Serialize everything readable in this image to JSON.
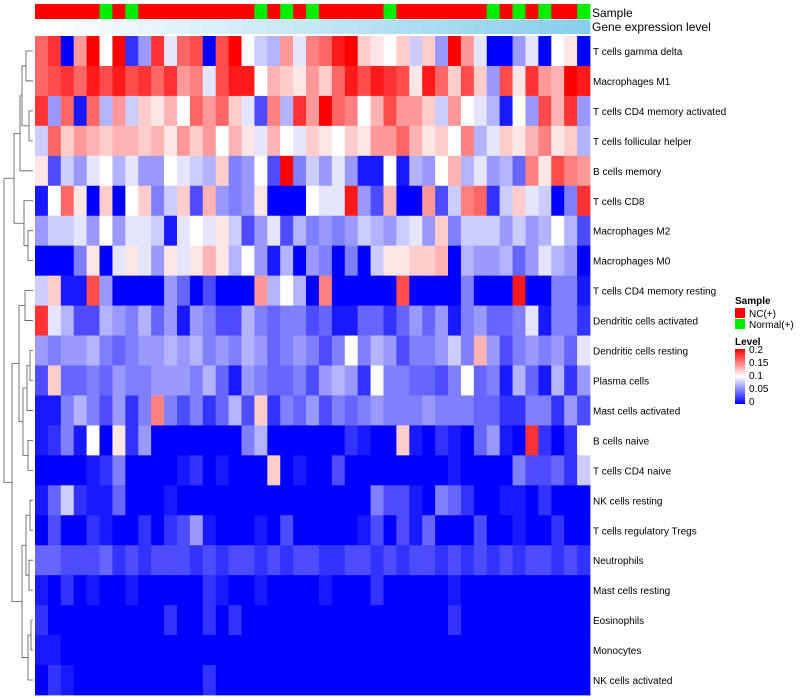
{
  "chart_data": {
    "type": "heatmap",
    "annotation_titles": {
      "sample": "Sample",
      "gene_expression": "Gene expression level"
    },
    "sample_groups": [
      "NC",
      "NC",
      "NC",
      "NC",
      "NC",
      "Normal",
      "NC",
      "Normal",
      "NC",
      "NC",
      "NC",
      "NC",
      "NC",
      "NC",
      "NC",
      "NC",
      "NC",
      "Normal",
      "NC",
      "Normal",
      "NC",
      "Normal",
      "NC",
      "NC",
      "NC",
      "NC",
      "NC",
      "Normal",
      "NC",
      "NC",
      "NC",
      "NC",
      "NC",
      "NC",
      "NC",
      "Normal",
      "NC",
      "Normal",
      "NC",
      "Normal",
      "NC",
      "NC",
      "Normal"
    ],
    "sample_group_colors": {
      "NC": "#ff0000",
      "Normal": "#00ee00"
    },
    "gene_expression_colors": {
      "start": "#ffffff",
      "end": "#87ceeb"
    },
    "rows": [
      "T cells gamma delta",
      "Macrophages M1",
      "T cells CD4 memory activated",
      "T cells follicular helper",
      "B cells memory",
      "T cells CD8",
      "Macrophages M2",
      "Macrophages M0",
      "T cells CD4 memory resting",
      "Dendritic cells activated",
      "Dendritic cells resting",
      "Plasma cells",
      "Mast cells activated",
      "B cells naive",
      "T cells CD4 naive",
      "NK cells resting",
      "T cells regulatory  Tregs",
      "Neutrophils",
      "Mast cells resting",
      "Eosinophils",
      "Monocytes",
      "NK cells activated"
    ],
    "values": [
      [
        0.16,
        0.18,
        0.0,
        0.14,
        0.2,
        0.1,
        0.2,
        0.02,
        0.06,
        0.18,
        0.09,
        0.16,
        0.17,
        0.0,
        0.17,
        0.2,
        0.1,
        0.08,
        0.07,
        0.14,
        0.09,
        0.15,
        0.16,
        0.19,
        0.2,
        0.12,
        0.11,
        0.1,
        0.12,
        0.08,
        0.12,
        0.06,
        0.2,
        0.14,
        0.09,
        0.0,
        0.0,
        0.06,
        0.09,
        0.0,
        0.1,
        0.11,
        0.0
      ],
      [
        0.16,
        0.17,
        0.18,
        0.16,
        0.19,
        0.17,
        0.19,
        0.17,
        0.18,
        0.16,
        0.18,
        0.14,
        0.15,
        0.09,
        0.17,
        0.19,
        0.19,
        0.1,
        0.13,
        0.12,
        0.11,
        0.14,
        0.12,
        0.16,
        0.19,
        0.17,
        0.19,
        0.18,
        0.17,
        0.11,
        0.19,
        0.16,
        0.12,
        0.17,
        0.12,
        0.06,
        0.17,
        0.11,
        0.18,
        0.14,
        0.13,
        0.2,
        0.19
      ],
      [
        0.18,
        0.06,
        0.16,
        0.01,
        0.16,
        0.07,
        0.14,
        0.08,
        0.12,
        0.11,
        0.13,
        0.1,
        0.16,
        0.14,
        0.16,
        0.12,
        0.09,
        0.03,
        0.15,
        0.07,
        0.18,
        0.14,
        0.2,
        0.16,
        0.15,
        0.1,
        0.13,
        0.17,
        0.14,
        0.14,
        0.12,
        0.08,
        0.14,
        0.1,
        0.09,
        0.07,
        0.01,
        0.1,
        0.06,
        0.17,
        0.13,
        0.18,
        0.06
      ],
      [
        0.08,
        0.16,
        0.12,
        0.14,
        0.13,
        0.12,
        0.13,
        0.13,
        0.12,
        0.13,
        0.11,
        0.14,
        0.12,
        0.14,
        0.1,
        0.13,
        0.11,
        0.09,
        0.13,
        0.1,
        0.09,
        0.12,
        0.11,
        0.1,
        0.12,
        0.11,
        0.14,
        0.14,
        0.16,
        0.13,
        0.11,
        0.12,
        0.1,
        0.15,
        0.07,
        0.09,
        0.12,
        0.11,
        0.13,
        0.15,
        0.11,
        0.12,
        0.07
      ],
      [
        0.11,
        0.03,
        0.08,
        0.06,
        0.09,
        0.1,
        0.07,
        0.09,
        0.06,
        0.06,
        0.1,
        0.09,
        0.08,
        0.07,
        0.12,
        0.05,
        0.06,
        0.1,
        0.03,
        0.2,
        0.05,
        0.08,
        0.06,
        0.09,
        0.06,
        0.01,
        0.01,
        0.1,
        0.01,
        0.07,
        0.06,
        0.1,
        0.13,
        0.07,
        0.09,
        0.06,
        0.07,
        0.04,
        0.15,
        0.11,
        0.17,
        0.15,
        0.14
      ],
      [
        0.01,
        0.1,
        0.16,
        0.11,
        0.0,
        0.12,
        0.0,
        0.1,
        0.12,
        0.05,
        0.08,
        0.12,
        0.03,
        0.13,
        0.06,
        0.05,
        0.06,
        0.11,
        0.0,
        0.0,
        0.0,
        0.1,
        0.09,
        0.09,
        0.19,
        0.06,
        0.03,
        0.13,
        0.0,
        0.0,
        0.14,
        0.03,
        0.08,
        0.15,
        0.16,
        0.02,
        0.08,
        0.12,
        0.09,
        0.08,
        0.0,
        0.05,
        0.18
      ],
      [
        0.06,
        0.08,
        0.08,
        0.09,
        0.06,
        0.1,
        0.06,
        0.09,
        0.09,
        0.08,
        0.01,
        0.09,
        0.1,
        0.09,
        0.11,
        0.08,
        0.03,
        0.06,
        0.09,
        0.03,
        0.07,
        0.05,
        0.06,
        0.05,
        0.06,
        0.08,
        0.07,
        0.06,
        0.08,
        0.09,
        0.06,
        0.12,
        0.05,
        0.08,
        0.08,
        0.08,
        0.06,
        0.08,
        0.06,
        0.07,
        0.1,
        0.07,
        0.03
      ],
      [
        0.0,
        0.0,
        0.0,
        0.05,
        0.11,
        0.0,
        0.09,
        0.11,
        0.09,
        0.06,
        0.11,
        0.09,
        0.11,
        0.13,
        0.11,
        0.07,
        0.1,
        0.06,
        0.01,
        0.07,
        0.0,
        0.06,
        0.05,
        0.0,
        0.05,
        0.0,
        0.08,
        0.11,
        0.11,
        0.12,
        0.12,
        0.13,
        0.0,
        0.07,
        0.06,
        0.06,
        0.07,
        0.04,
        0.06,
        0.09,
        0.07,
        0.06,
        0.0
      ],
      [
        0.08,
        0.12,
        0.01,
        0.01,
        0.17,
        0.06,
        0.0,
        0.0,
        0.0,
        0.0,
        0.06,
        0.04,
        0.0,
        0.03,
        0.0,
        0.0,
        0.0,
        0.14,
        0.07,
        0.1,
        0.07,
        0.0,
        0.15,
        0.0,
        0.0,
        0.0,
        0.0,
        0.0,
        0.17,
        0.0,
        0.0,
        0.0,
        0.0,
        0.05,
        0.0,
        0.0,
        0.0,
        0.19,
        0.0,
        0.0,
        0.05,
        0.05,
        0.01
      ],
      [
        0.18,
        0.09,
        0.07,
        0.03,
        0.03,
        0.07,
        0.06,
        0.05,
        0.07,
        0.04,
        0.06,
        0.01,
        0.06,
        0.05,
        0.03,
        0.03,
        0.07,
        0.05,
        0.04,
        0.05,
        0.05,
        0.03,
        0.04,
        0.01,
        0.01,
        0.04,
        0.04,
        0.02,
        0.04,
        0.06,
        0.04,
        0.06,
        0.01,
        0.05,
        0.06,
        0.04,
        0.04,
        0.05,
        0.09,
        0.01,
        0.05,
        0.05,
        0.02
      ],
      [
        0.06,
        0.05,
        0.06,
        0.06,
        0.07,
        0.05,
        0.04,
        0.05,
        0.06,
        0.06,
        0.07,
        0.06,
        0.07,
        0.05,
        0.06,
        0.05,
        0.07,
        0.06,
        0.04,
        0.05,
        0.06,
        0.05,
        0.03,
        0.05,
        0.1,
        0.05,
        0.07,
        0.06,
        0.03,
        0.05,
        0.05,
        0.06,
        0.08,
        0.05,
        0.13,
        0.06,
        0.03,
        0.05,
        0.06,
        0.05,
        0.06,
        0.04,
        0.09
      ],
      [
        0.03,
        0.12,
        0.04,
        0.04,
        0.05,
        0.04,
        0.06,
        0.05,
        0.05,
        0.06,
        0.06,
        0.06,
        0.05,
        0.07,
        0.04,
        0.01,
        0.06,
        0.05,
        0.04,
        0.04,
        0.05,
        0.03,
        0.06,
        0.07,
        0.06,
        0.02,
        0.1,
        0.05,
        0.05,
        0.04,
        0.04,
        0.03,
        0.05,
        0.1,
        0.04,
        0.05,
        0.01,
        0.07,
        0.04,
        0.01,
        0.07,
        0.02,
        0.06
      ],
      [
        0.01,
        0.01,
        0.05,
        0.07,
        0.05,
        0.03,
        0.06,
        0.02,
        0.05,
        0.15,
        0.05,
        0.03,
        0.05,
        0.02,
        0.04,
        0.07,
        0.03,
        0.12,
        0.02,
        0.05,
        0.04,
        0.06,
        0.03,
        0.05,
        0.04,
        0.05,
        0.06,
        0.05,
        0.05,
        0.05,
        0.06,
        0.05,
        0.05,
        0.05,
        0.04,
        0.04,
        0.02,
        0.02,
        0.05,
        0.05,
        0.02,
        0.06,
        0.03
      ],
      [
        0.01,
        0.02,
        0.05,
        0.01,
        0.1,
        0.0,
        0.11,
        0.02,
        0.06,
        0.0,
        0.0,
        0.0,
        0.0,
        0.0,
        0.0,
        0.0,
        0.05,
        0.07,
        0.0,
        0.0,
        0.0,
        0.0,
        0.0,
        0.0,
        0.02,
        0.01,
        0.0,
        0.0,
        0.12,
        0.01,
        0.0,
        0.02,
        0.01,
        0.0,
        0.04,
        0.06,
        0.01,
        0.0,
        0.18,
        0.02,
        0.0,
        0.02,
        0.1
      ],
      [
        0.0,
        0.0,
        0.0,
        0.0,
        0.01,
        0.02,
        0.05,
        0.0,
        0.0,
        0.0,
        0.0,
        0.01,
        0.02,
        0.0,
        0.01,
        0.0,
        0.0,
        0.0,
        0.12,
        0.0,
        0.01,
        0.0,
        0.0,
        0.03,
        0.0,
        0.0,
        0.0,
        0.0,
        0.0,
        0.0,
        0.0,
        0.0,
        0.01,
        0.0,
        0.0,
        0.0,
        0.0,
        0.05,
        0.03,
        0.03,
        0.04,
        0.02,
        0.08
      ],
      [
        0.01,
        0.04,
        0.08,
        0.02,
        0.01,
        0.01,
        0.04,
        0.0,
        0.0,
        0.0,
        0.01,
        0.0,
        0.0,
        0.0,
        0.0,
        0.0,
        0.0,
        0.0,
        0.0,
        0.0,
        0.0,
        0.0,
        0.0,
        0.0,
        0.0,
        0.0,
        0.05,
        0.03,
        0.03,
        0.01,
        0.0,
        0.05,
        0.04,
        0.02,
        0.0,
        0.0,
        0.01,
        0.01,
        0.0,
        0.02,
        0.0,
        0.0,
        0.0
      ],
      [
        0.0,
        0.03,
        0.0,
        0.0,
        0.02,
        0.01,
        0.0,
        0.0,
        0.02,
        0.0,
        0.02,
        0.03,
        0.06,
        0.01,
        0.0,
        0.0,
        0.0,
        0.01,
        0.0,
        0.03,
        0.0,
        0.0,
        0.0,
        0.0,
        0.0,
        0.01,
        0.03,
        0.0,
        0.03,
        0.01,
        0.04,
        0.0,
        0.0,
        0.0,
        0.03,
        0.0,
        0.0,
        0.01,
        0.0,
        0.0,
        0.02,
        0.0,
        0.0
      ],
      [
        0.04,
        0.04,
        0.03,
        0.03,
        0.03,
        0.04,
        0.02,
        0.03,
        0.02,
        0.03,
        0.03,
        0.03,
        0.02,
        0.03,
        0.02,
        0.03,
        0.03,
        0.02,
        0.03,
        0.02,
        0.03,
        0.03,
        0.02,
        0.02,
        0.03,
        0.03,
        0.02,
        0.03,
        0.02,
        0.03,
        0.03,
        0.02,
        0.03,
        0.02,
        0.03,
        0.02,
        0.03,
        0.02,
        0.03,
        0.03,
        0.02,
        0.03,
        0.02
      ],
      [
        0.01,
        0.0,
        0.02,
        0.0,
        0.01,
        0.0,
        0.0,
        0.01,
        0.0,
        0.0,
        0.0,
        0.0,
        0.0,
        0.02,
        0.01,
        0.0,
        0.0,
        0.01,
        0.0,
        0.0,
        0.0,
        0.0,
        0.01,
        0.0,
        0.0,
        0.0,
        0.02,
        0.0,
        0.0,
        0.0,
        0.0,
        0.0,
        0.01,
        0.0,
        0.0,
        0.0,
        0.0,
        0.0,
        0.0,
        0.0,
        0.0,
        0.0,
        0.0
      ],
      [
        0.02,
        0.0,
        0.0,
        0.0,
        0.0,
        0.0,
        0.0,
        0.0,
        0.0,
        0.0,
        0.02,
        0.0,
        0.0,
        0.02,
        0.0,
        0.02,
        0.0,
        0.0,
        0.0,
        0.0,
        0.0,
        0.0,
        0.0,
        0.0,
        0.0,
        0.0,
        0.0,
        0.0,
        0.0,
        0.0,
        0.0,
        0.0,
        0.02,
        0.0,
        0.0,
        0.0,
        0.0,
        0.0,
        0.0,
        0.0,
        0.0,
        0.0,
        0.0
      ],
      [
        0.01,
        0.01,
        0.0,
        0.0,
        0.0,
        0.0,
        0.0,
        0.0,
        0.0,
        0.0,
        0.0,
        0.0,
        0.0,
        0.0,
        0.0,
        0.0,
        0.0,
        0.0,
        0.0,
        0.0,
        0.0,
        0.0,
        0.0,
        0.0,
        0.0,
        0.0,
        0.0,
        0.0,
        0.0,
        0.0,
        0.0,
        0.0,
        0.0,
        0.0,
        0.0,
        0.0,
        0.0,
        0.0,
        0.0,
        0.0,
        0.0,
        0.0,
        0.0
      ],
      [
        0.0,
        0.02,
        0.01,
        0.0,
        0.0,
        0.0,
        0.0,
        0.0,
        0.0,
        0.0,
        0.0,
        0.0,
        0.0,
        0.02,
        0.0,
        0.0,
        0.0,
        0.0,
        0.0,
        0.0,
        0.0,
        0.0,
        0.0,
        0.0,
        0.0,
        0.0,
        0.0,
        0.0,
        0.0,
        0.0,
        0.0,
        0.0,
        0.0,
        0.0,
        0.0,
        0.0,
        0.0,
        0.0,
        0.0,
        0.0,
        0.0,
        0.0,
        0.0
      ]
    ],
    "color_scale": {
      "stops": [
        0,
        0.1,
        0.2
      ],
      "colors": [
        "#0000ff",
        "#ffffff",
        "#ff0000"
      ]
    },
    "legend": {
      "sample_title": "Sample",
      "sample_entries": [
        {
          "label": "NC(+)",
          "color": "#ff0000"
        },
        {
          "label": "Normal(+)",
          "color": "#00ee00"
        }
      ],
      "level_title": "Level",
      "level_ticks": [
        "0.2",
        "0.15",
        "0.1",
        "0.05",
        "0"
      ],
      "placement": "right"
    },
    "row_dendrogram": true
  }
}
